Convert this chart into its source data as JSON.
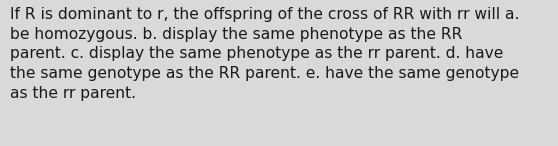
{
  "lines": [
    "If R is dominant to r, the offspring of the cross of RR with rr will a.",
    "be homozygous. b. display the same phenotype as the RR",
    "parent. c. display the same phenotype as the rr parent. d. have",
    "the same genotype as the RR parent. e. have the same genotype",
    "as the rr parent."
  ],
  "background_color": "#d9d9d9",
  "text_color": "#1a1a1a",
  "font_size": 11.2,
  "font_family": "DejaVu Sans"
}
